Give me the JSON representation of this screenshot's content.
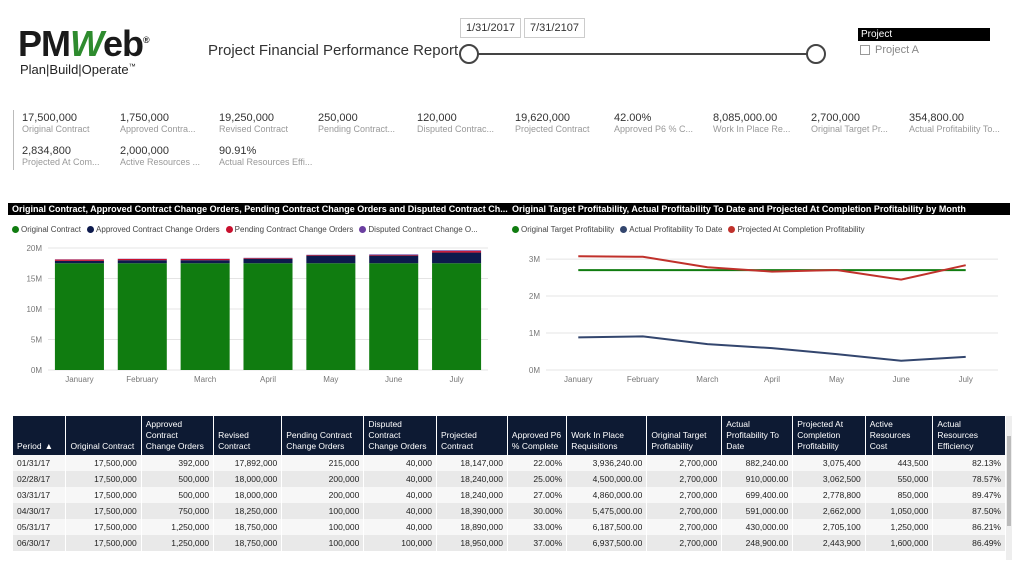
{
  "header": {
    "logo_pm": "PM",
    "logo_w": "W",
    "logo_eb": "eb",
    "logo_reg": "®",
    "logo_tagline": "Plan|Build|Operate",
    "logo_tm": "™",
    "title": "Project Financial Performance Report",
    "date_start": "1/31/2017",
    "date_end": "7/31/2107",
    "project_filter_title": "Project",
    "project_option": "Project A"
  },
  "kpis": [
    {
      "value": "17,500,000",
      "label": "Original Contract"
    },
    {
      "value": "1,750,000",
      "label": "Approved Contra..."
    },
    {
      "value": "19,250,000",
      "label": "Revised Contract"
    },
    {
      "value": "250,000",
      "label": "Pending Contract..."
    },
    {
      "value": "120,000",
      "label": "Disputed Contrac..."
    },
    {
      "value": "19,620,000",
      "label": "Projected Contract"
    },
    {
      "value": "42.00%",
      "label": "Approved P6 % C..."
    },
    {
      "value": "8,085,000.00",
      "label": "Work In Place Re..."
    },
    {
      "value": "2,700,000",
      "label": "Original Target Pr..."
    },
    {
      "value": "354,800.00",
      "label": "Actual Profitability To..."
    },
    {
      "value": "2,834,800",
      "label": "Projected At Com..."
    },
    {
      "value": "2,000,000",
      "label": "Active Resources ..."
    },
    {
      "value": "90.91%",
      "label": "Actual Resources Effi..."
    }
  ],
  "chart_data": [
    {
      "type": "bar",
      "stacked": true,
      "title": "Original Contract, Approved Contract Change Orders, Pending Contract Change Orders and Disputed Contract Ch...",
      "categories": [
        "January",
        "February",
        "March",
        "April",
        "May",
        "June",
        "July"
      ],
      "yticks": [
        "0M",
        "5M",
        "10M",
        "15M",
        "20M"
      ],
      "ylim": [
        0,
        20000000
      ],
      "series": [
        {
          "name": "Original Contract",
          "color": "#107c10",
          "values": [
            17500000,
            17500000,
            17500000,
            17500000,
            17500000,
            17500000,
            17500000
          ]
        },
        {
          "name": "Approved Contract Change Orders",
          "color": "#0d1a4d",
          "values": [
            392000,
            500000,
            500000,
            750000,
            1250000,
            1250000,
            1750000
          ]
        },
        {
          "name": "Pending Contract Change Orders",
          "color": "#c8102e",
          "values": [
            215000,
            200000,
            200000,
            100000,
            100000,
            100000,
            250000
          ]
        },
        {
          "name": "Disputed Contract Change O...",
          "color": "#6b3fa0",
          "values": [
            40000,
            40000,
            40000,
            40000,
            40000,
            100000,
            120000
          ]
        }
      ],
      "legend": "top"
    },
    {
      "type": "line",
      "title": "Original Target Profitability, Actual Profitability To Date and Projected At Completion Profitability by Month",
      "categories": [
        "January",
        "February",
        "March",
        "April",
        "May",
        "June",
        "July"
      ],
      "yticks": [
        "0M",
        "1M",
        "2M",
        "3M"
      ],
      "ylim": [
        0,
        3300000
      ],
      "series": [
        {
          "name": "Original Target Profitability",
          "color": "#107c10",
          "values": [
            2700000,
            2700000,
            2700000,
            2700000,
            2700000,
            2700000,
            2700000
          ]
        },
        {
          "name": "Actual Profitability To Date",
          "color": "#33466e",
          "values": [
            882240,
            910000,
            699400,
            591000,
            430000,
            248900,
            354800
          ]
        },
        {
          "name": "Projected At Completion Profitability",
          "color": "#c0312b",
          "values": [
            3075400,
            3062500,
            2778800,
            2662000,
            2705100,
            2443900,
            2834800
          ]
        }
      ],
      "legend": "top"
    }
  ],
  "table": {
    "headers": [
      "Period",
      "Original Contract",
      "Approved Contract Change Orders",
      "Revised Contract",
      "Pending Contract Change Orders",
      "Disputed Contract Change Orders",
      "Projected Contract",
      "Approved P6 % Complete",
      "Work In Place Requisitions",
      "Original Target Profitability",
      "Actual Profitability To Date",
      "Projected At Completion Profitability",
      "Active Resources Cost",
      "Actual Resources Efficiency"
    ],
    "sort_indicator": "▲",
    "rows": [
      [
        "01/31/17",
        "17,500,000",
        "392,000",
        "17,892,000",
        "215,000",
        "40,000",
        "18,147,000",
        "22.00%",
        "3,936,240.00",
        "2,700,000",
        "882,240.00",
        "3,075,400",
        "443,500",
        "82.13%"
      ],
      [
        "02/28/17",
        "17,500,000",
        "500,000",
        "18,000,000",
        "200,000",
        "40,000",
        "18,240,000",
        "25.00%",
        "4,500,000.00",
        "2,700,000",
        "910,000.00",
        "3,062,500",
        "550,000",
        "78.57%"
      ],
      [
        "03/31/17",
        "17,500,000",
        "500,000",
        "18,000,000",
        "200,000",
        "40,000",
        "18,240,000",
        "27.00%",
        "4,860,000.00",
        "2,700,000",
        "699,400.00",
        "2,778,800",
        "850,000",
        "89.47%"
      ],
      [
        "04/30/17",
        "17,500,000",
        "750,000",
        "18,250,000",
        "100,000",
        "40,000",
        "18,390,000",
        "30.00%",
        "5,475,000.00",
        "2,700,000",
        "591,000.00",
        "2,662,000",
        "1,050,000",
        "87.50%"
      ],
      [
        "05/31/17",
        "17,500,000",
        "1,250,000",
        "18,750,000",
        "100,000",
        "40,000",
        "18,890,000",
        "33.00%",
        "6,187,500.00",
        "2,700,000",
        "430,000.00",
        "2,705,100",
        "1,250,000",
        "86.21%"
      ],
      [
        "06/30/17",
        "17,500,000",
        "1,250,000",
        "18,750,000",
        "100,000",
        "100,000",
        "18,950,000",
        "37.00%",
        "6,937,500.00",
        "2,700,000",
        "248,900.00",
        "2,443,900",
        "1,600,000",
        "86.49%"
      ]
    ]
  }
}
